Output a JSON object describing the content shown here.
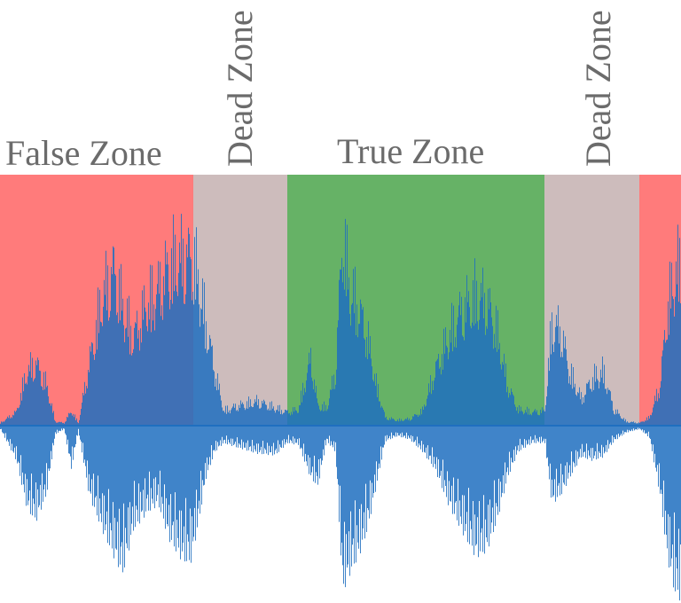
{
  "labels": {
    "false_zone": "False Zone",
    "dead_zone_1": "Dead Zone",
    "true_zone": "True Zone",
    "dead_zone_2": "Dead Zone"
  },
  "colors": {
    "false_zone": "#ff7b7b",
    "dead_zone": "#cdbcbc",
    "true_zone": "#66b266",
    "waveform": "#1f6fc0",
    "label": "#6b6b6b"
  }
}
